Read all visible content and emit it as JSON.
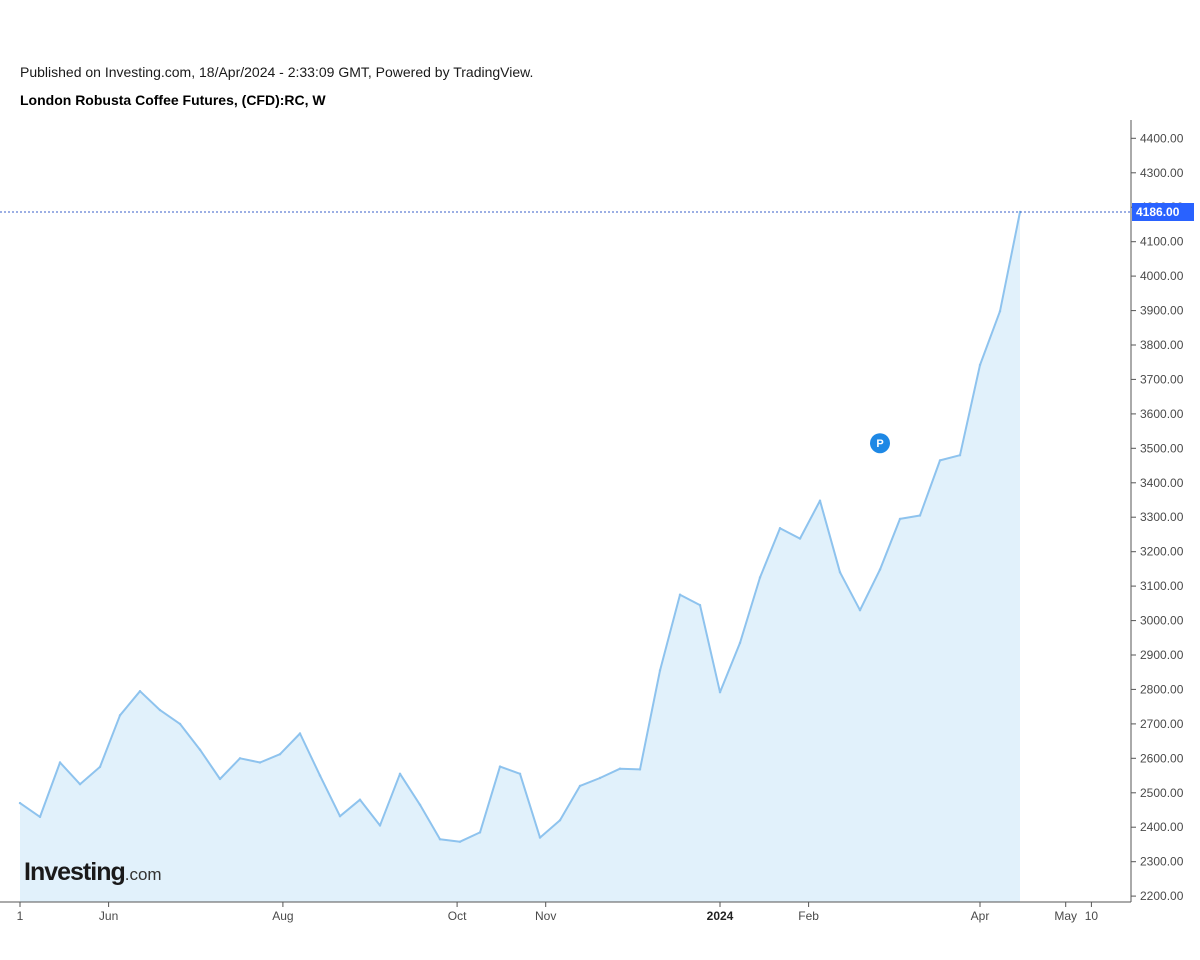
{
  "header": {
    "published": "Published on Investing.com, 18/Apr/2024 - 2:33:09 GMT, Powered by TradingView.",
    "title": "London Robusta Coffee Futures, (CFD):RC, W"
  },
  "logo": {
    "main": "Investing",
    "suffix": ".com"
  },
  "marker": {
    "label": "P",
    "date": "2024-02-26",
    "value": 3515
  },
  "colors": {
    "line": "#8ec3ee",
    "area": "#e1f1fb",
    "price_line": "#3a5fc8",
    "price_badge": "#2962ff",
    "marker": "#1e88e5"
  },
  "chart_data": {
    "type": "area",
    "current_value_label": "4186.00",
    "current_value": 4186,
    "ylim": [
      2180,
      4430
    ],
    "xlim": [
      "2024-05-01",
      "2024-05-13"
    ],
    "y_ticks": [
      "2200.00",
      "2300.00",
      "2400.00",
      "2500.00",
      "2600.00",
      "2700.00",
      "2800.00",
      "2900.00",
      "3000.00",
      "3100.00",
      "3200.00",
      "3300.00",
      "3400.00",
      "3500.00",
      "3600.00",
      "3700.00",
      "3800.00",
      "3900.00",
      "4000.00",
      "4100.00",
      "4200.00",
      "4300.00",
      "4400.00"
    ],
    "x_ticks": [
      {
        "label": "1",
        "date": "2023-05-01",
        "bold": false
      },
      {
        "label": "Jun",
        "date": "2023-06-01",
        "bold": false
      },
      {
        "label": "Aug",
        "date": "2023-08-01",
        "bold": false
      },
      {
        "label": "Oct",
        "date": "2023-10-01",
        "bold": false
      },
      {
        "label": "Nov",
        "date": "2023-11-01",
        "bold": false
      },
      {
        "label": "2024",
        "date": "2024-01-01",
        "bold": true
      },
      {
        "label": "Feb",
        "date": "2024-02-01",
        "bold": false
      },
      {
        "label": "Apr",
        "date": "2024-04-01",
        "bold": false
      },
      {
        "label": "May",
        "date": "2024-05-01",
        "bold": false
      },
      {
        "label": "10",
        "date": "2024-05-10",
        "bold": false
      }
    ],
    "points": [
      {
        "x": "2023-05-01",
        "y": 2470
      },
      {
        "x": "2023-05-08",
        "y": 2430
      },
      {
        "x": "2023-05-15",
        "y": 2588
      },
      {
        "x": "2023-05-22",
        "y": 2525
      },
      {
        "x": "2023-05-29",
        "y": 2575
      },
      {
        "x": "2023-06-05",
        "y": 2725
      },
      {
        "x": "2023-06-12",
        "y": 2795
      },
      {
        "x": "2023-06-19",
        "y": 2740
      },
      {
        "x": "2023-06-26",
        "y": 2700
      },
      {
        "x": "2023-07-03",
        "y": 2625
      },
      {
        "x": "2023-07-10",
        "y": 2540
      },
      {
        "x": "2023-07-17",
        "y": 2600
      },
      {
        "x": "2023-07-24",
        "y": 2588
      },
      {
        "x": "2023-07-31",
        "y": 2612
      },
      {
        "x": "2023-08-07",
        "y": 2672
      },
      {
        "x": "2023-08-14",
        "y": 2550
      },
      {
        "x": "2023-08-21",
        "y": 2432
      },
      {
        "x": "2023-08-28",
        "y": 2480
      },
      {
        "x": "2023-09-04",
        "y": 2405
      },
      {
        "x": "2023-09-11",
        "y": 2555
      },
      {
        "x": "2023-09-18",
        "y": 2465
      },
      {
        "x": "2023-09-25",
        "y": 2365
      },
      {
        "x": "2023-10-02",
        "y": 2358
      },
      {
        "x": "2023-10-09",
        "y": 2385
      },
      {
        "x": "2023-10-16",
        "y": 2576
      },
      {
        "x": "2023-10-23",
        "y": 2555
      },
      {
        "x": "2023-10-30",
        "y": 2370
      },
      {
        "x": "2023-11-06",
        "y": 2420
      },
      {
        "x": "2023-11-13",
        "y": 2520
      },
      {
        "x": "2023-11-20",
        "y": 2543
      },
      {
        "x": "2023-11-27",
        "y": 2570
      },
      {
        "x": "2023-12-04",
        "y": 2568
      },
      {
        "x": "2023-12-11",
        "y": 2855
      },
      {
        "x": "2023-12-18",
        "y": 3075
      },
      {
        "x": "2023-12-25",
        "y": 3045
      },
      {
        "x": "2024-01-01",
        "y": 2792
      },
      {
        "x": "2024-01-08",
        "y": 2935
      },
      {
        "x": "2024-01-15",
        "y": 3125
      },
      {
        "x": "2024-01-22",
        "y": 3268
      },
      {
        "x": "2024-01-29",
        "y": 3238
      },
      {
        "x": "2024-02-05",
        "y": 3348
      },
      {
        "x": "2024-02-12",
        "y": 3140
      },
      {
        "x": "2024-02-19",
        "y": 3030
      },
      {
        "x": "2024-02-26",
        "y": 3148
      },
      {
        "x": "2024-03-04",
        "y": 3295
      },
      {
        "x": "2024-03-11",
        "y": 3305
      },
      {
        "x": "2024-03-18",
        "y": 3465
      },
      {
        "x": "2024-03-25",
        "y": 3480
      },
      {
        "x": "2024-04-01",
        "y": 3742
      },
      {
        "x": "2024-04-08",
        "y": 3898
      },
      {
        "x": "2024-04-15",
        "y": 4186
      }
    ]
  }
}
